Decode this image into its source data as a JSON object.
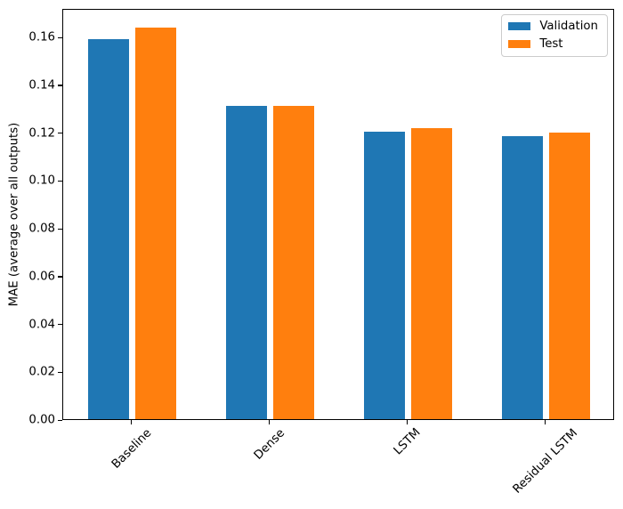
{
  "figure": {
    "background": "#ffffff"
  },
  "chart_data": {
    "type": "bar",
    "title": "",
    "xlabel": "",
    "ylabel": "MAE (average over all outputs)",
    "categories": [
      "Baseline",
      "Dense",
      "LSTM",
      "Residual LSTM"
    ],
    "series": [
      {
        "name": "Validation",
        "color": "#1f77b4",
        "values": [
          0.159,
          0.1311,
          0.1204,
          0.1185
        ]
      },
      {
        "name": "Test",
        "color": "#ff7f0e",
        "values": [
          0.1638,
          0.131,
          0.1218,
          0.1199
        ]
      }
    ],
    "y_ticks": [
      0.0,
      0.02,
      0.04,
      0.06,
      0.08,
      0.1,
      0.12,
      0.14,
      0.16
    ],
    "y_tick_labels": [
      "0.00",
      "0.02",
      "0.04",
      "0.06",
      "0.08",
      "0.10",
      "0.12",
      "0.14",
      "0.16"
    ],
    "ylim": [
      0,
      0.172
    ],
    "grid": false,
    "legend_position": "upper right",
    "x_label_rotation_deg": 45,
    "axis_color": "#000000",
    "legend_border_color": "#cccccc"
  }
}
